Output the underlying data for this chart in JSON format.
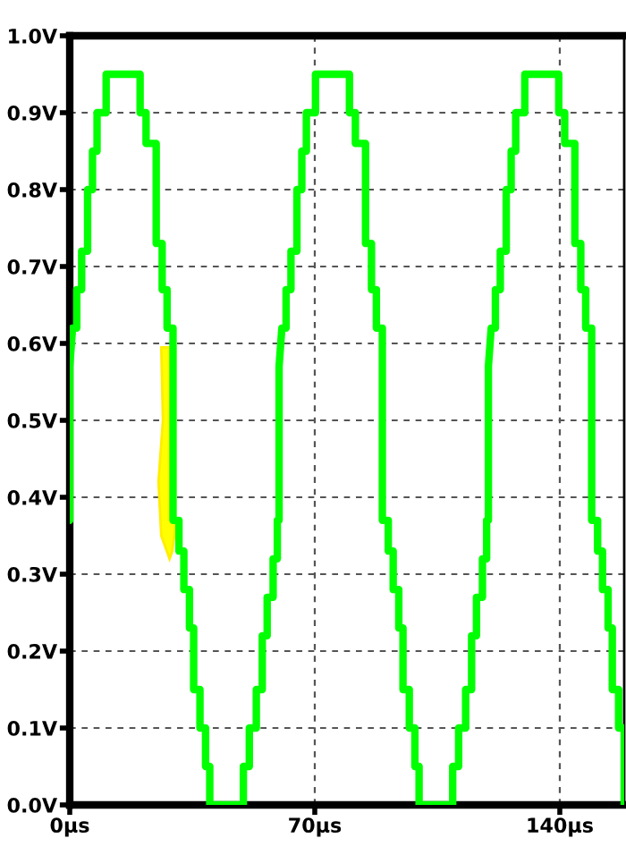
{
  "chart_data": {
    "type": "line",
    "series": [
      {
        "color": "#00ff00",
        "x": [
          0,
          0,
          0.8,
          2.0,
          2.0,
          3.4,
          3.4,
          5.1,
          5.1,
          6.5,
          6.5,
          7.8,
          7.8,
          10.4,
          10.4,
          20.1,
          20.1,
          21.8,
          21.8,
          24.7,
          24.7,
          26.4,
          26.4,
          27.8,
          27.8,
          29.5,
          29.5,
          31.2,
          31.2,
          32.6,
          32.6,
          34.2,
          34.2,
          35.4,
          35.4,
          37.2,
          37.2,
          38.8,
          38.8,
          40.0,
          40.0,
          49.6,
          49.6,
          51.3,
          51.3,
          53.3,
          53.3,
          55.0,
          55.0,
          56.4,
          56.4,
          58.1,
          58.1,
          59.3,
          59.3,
          59.8,
          59.8,
          60.6,
          61.8,
          61.8,
          63.2,
          63.2,
          64.9,
          64.9,
          66.3,
          66.3,
          67.6,
          67.6,
          70.2,
          70.2,
          79.9,
          79.9,
          81.6,
          81.6,
          84.5,
          84.5,
          86.2,
          86.2,
          87.6,
          87.6,
          89.3,
          89.3,
          91.0,
          91.0,
          92.4,
          92.4,
          94.0,
          94.0,
          95.2,
          95.2,
          97.0,
          97.0,
          98.6,
          98.6,
          99.8,
          99.8,
          109.4,
          109.4,
          111.1,
          111.1,
          113.1,
          113.1,
          114.8,
          114.8,
          116.2,
          116.2,
          117.9,
          117.9,
          119.1,
          119.1,
          119.6,
          119.6,
          120.4,
          121.6,
          121.6,
          123.0,
          123.0,
          124.7,
          124.7,
          126.1,
          126.1,
          127.4,
          127.4,
          130.0,
          130.0,
          139.7,
          139.7,
          141.4,
          141.4,
          144.3,
          144.3,
          146.0,
          146.0,
          147.4,
          147.4,
          149.1,
          149.1,
          150.8,
          150.8,
          152.2,
          152.2,
          153.8,
          153.8,
          155.0,
          155.0,
          156.8,
          156.8,
          158.4,
          158.4,
          158.4
        ],
        "values": [
          0.37,
          0.57,
          0.62,
          0.62,
          0.67,
          0.67,
          0.72,
          0.72,
          0.8,
          0.8,
          0.85,
          0.85,
          0.9,
          0.9,
          0.95,
          0.95,
          0.9,
          0.9,
          0.86,
          0.86,
          0.73,
          0.73,
          0.67,
          0.67,
          0.62,
          0.62,
          0.37,
          0.37,
          0.33,
          0.33,
          0.28,
          0.28,
          0.23,
          0.23,
          0.15,
          0.15,
          0.1,
          0.1,
          0.05,
          0.05,
          0,
          0,
          0.05,
          0.05,
          0.1,
          0.1,
          0.15,
          0.15,
          0.22,
          0.22,
          0.27,
          0.27,
          0.32,
          0.32,
          0.37,
          0.37,
          0.57,
          0.62,
          0.62,
          0.67,
          0.67,
          0.72,
          0.72,
          0.8,
          0.8,
          0.85,
          0.85,
          0.9,
          0.9,
          0.95,
          0.95,
          0.9,
          0.9,
          0.86,
          0.86,
          0.73,
          0.73,
          0.67,
          0.67,
          0.62,
          0.62,
          0.37,
          0.37,
          0.33,
          0.33,
          0.28,
          0.28,
          0.23,
          0.23,
          0.15,
          0.15,
          0.1,
          0.1,
          0.05,
          0.05,
          0,
          0,
          0.05,
          0.05,
          0.1,
          0.1,
          0.15,
          0.15,
          0.22,
          0.22,
          0.27,
          0.27,
          0.32,
          0.32,
          0.37,
          0.37,
          0.57,
          0.62,
          0.62,
          0.67,
          0.67,
          0.72,
          0.72,
          0.8,
          0.8,
          0.85,
          0.85,
          0.9,
          0.9,
          0.95,
          0.95,
          0.9,
          0.9,
          0.86,
          0.86,
          0.73,
          0.73,
          0.67,
          0.67,
          0.62,
          0.62,
          0.37,
          0.37,
          0.33,
          0.33,
          0.28,
          0.28,
          0.23,
          0.23,
          0.15,
          0.15,
          0.1,
          0.1,
          0.05,
          0
        ]
      }
    ],
    "xlim": [
      0,
      158.4
    ],
    "ylim": [
      0,
      1.0
    ],
    "xticks": [
      {
        "value": 0,
        "label": "0µs"
      },
      {
        "value": 70,
        "label": "70µs"
      },
      {
        "value": 140,
        "label": "140µs"
      }
    ],
    "yticks": [
      {
        "value": 0,
        "label": "0.0V"
      },
      {
        "value": 0.1,
        "label": "0.1V"
      },
      {
        "value": 0.2,
        "label": "0.2V"
      },
      {
        "value": 0.3,
        "label": "0.3V"
      },
      {
        "value": 0.4,
        "label": "0.4V"
      },
      {
        "value": 0.5,
        "label": "0.5V"
      },
      {
        "value": 0.6,
        "label": "0.6V"
      },
      {
        "value": 0.7,
        "label": "0.7V"
      },
      {
        "value": 0.8,
        "label": "0.8V"
      },
      {
        "value": 0.9,
        "label": "0.9V"
      },
      {
        "value": 1.0,
        "label": "1.0V"
      }
    ],
    "grid": true,
    "line_style": "solid",
    "marker": "none"
  }
}
